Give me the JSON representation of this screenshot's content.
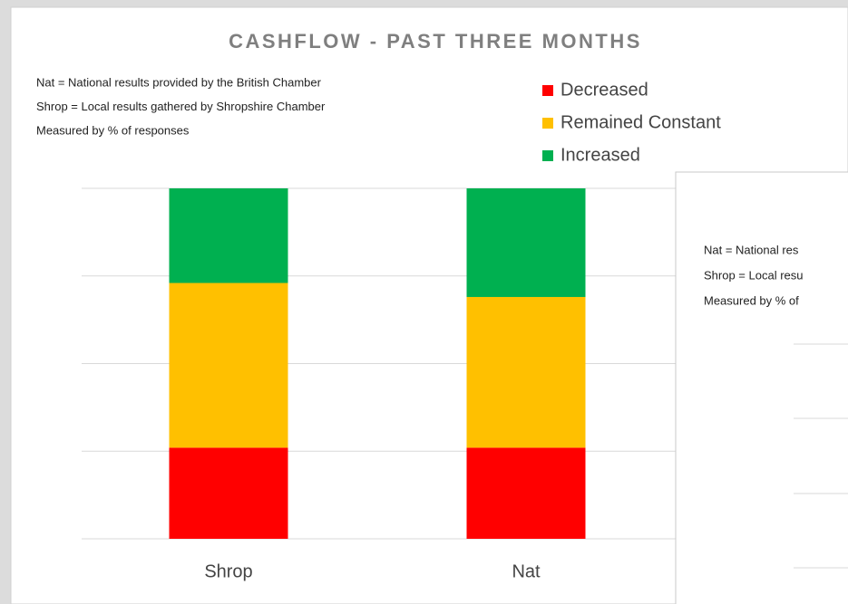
{
  "chart_data": {
    "type": "stacked_bar",
    "title": "CASHFLOW - PAST THREE MONTHS",
    "notes": [
      "Nat = National results provided by the British Chamber",
      "Shrop = Local results gathered by Shropshire Chamber",
      "Measured by % of responses"
    ],
    "categories": [
      "Shrop",
      "Nat"
    ],
    "series": [
      {
        "name": "Decreased",
        "color": "#ff0000",
        "values": [
          26,
          26
        ]
      },
      {
        "name": "Remained Constant",
        "color": "#ffc000",
        "values": [
          47,
          43
        ]
      },
      {
        "name": "Increased",
        "color": "#00b050",
        "values": [
          27,
          31
        ]
      }
    ],
    "ylim": [
      0,
      100
    ],
    "yticks": [
      0,
      25,
      50,
      75,
      100
    ],
    "show_tick_labels": false,
    "grid": true,
    "legend": "top-right"
  },
  "overlay_panel": {
    "notes": [
      "Nat = National res",
      "Shrop = Local resu",
      "Measured by % of"
    ]
  }
}
